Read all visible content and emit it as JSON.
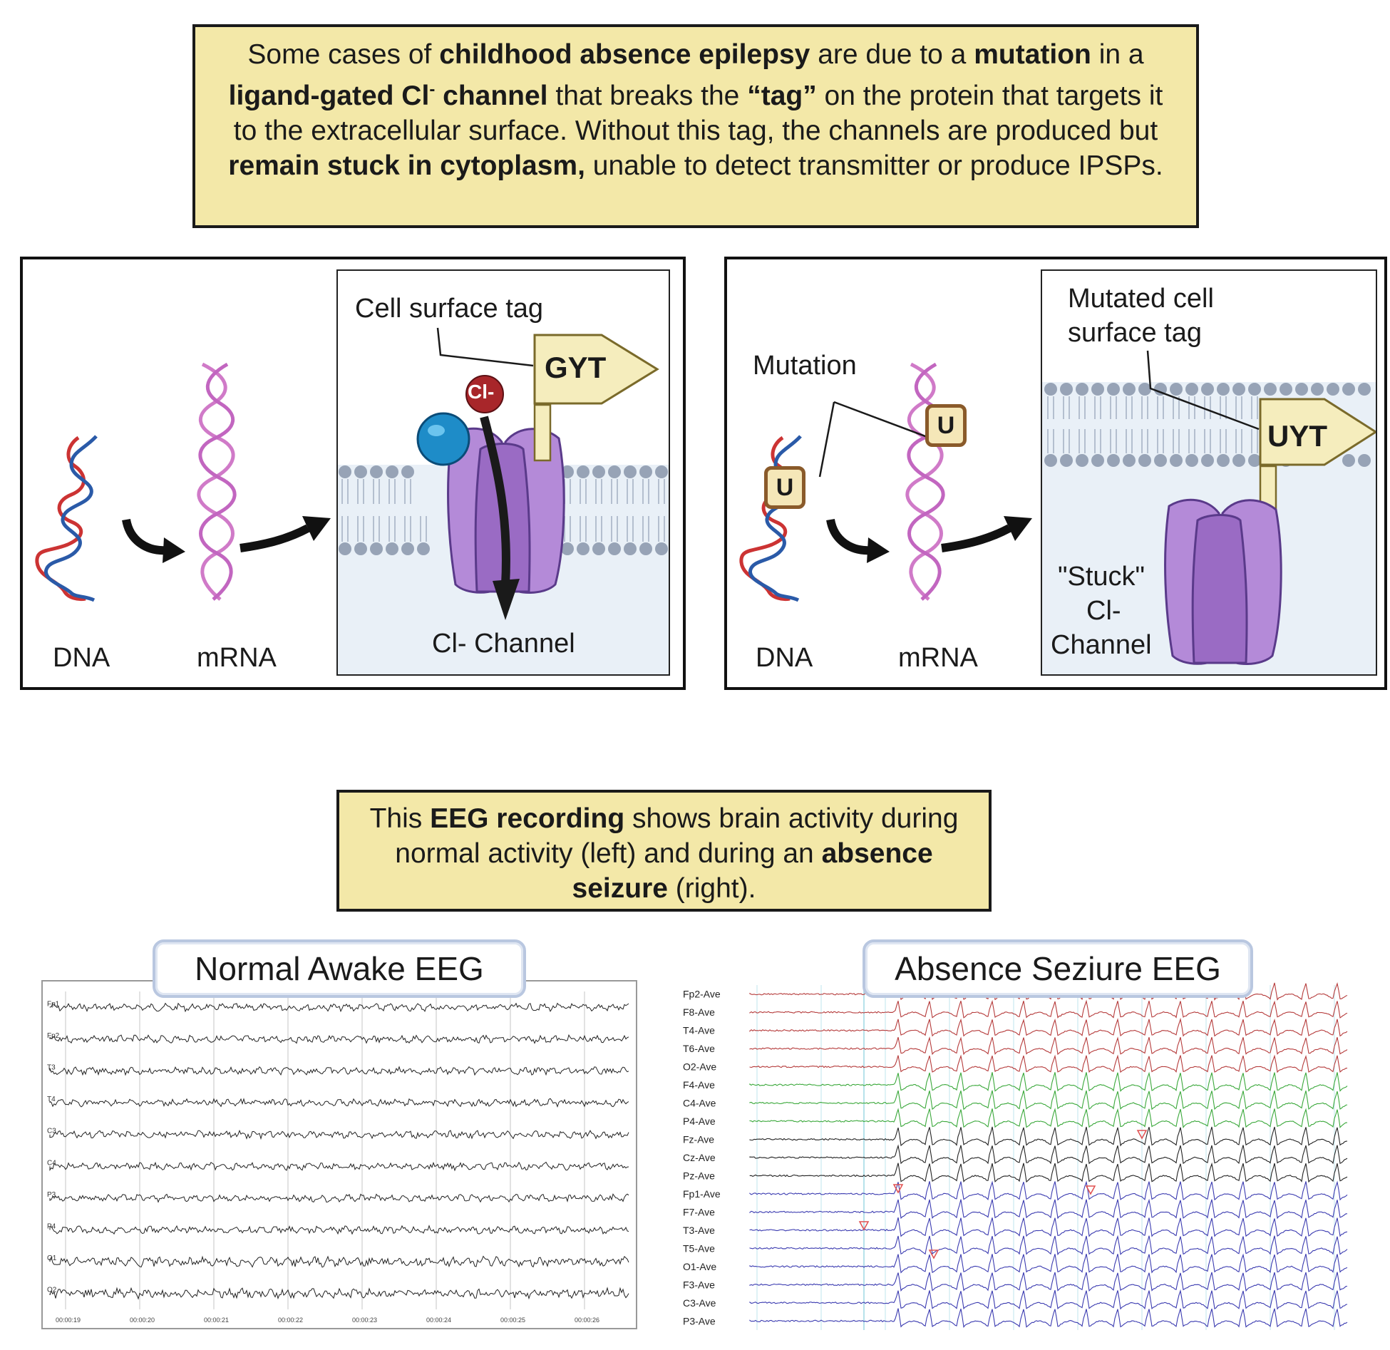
{
  "top_box": {
    "t1": "Some cases of ",
    "t2": "childhood absence epilepsy",
    "t3": " are due to a ",
    "t4": "mutation",
    "t5": " in a ",
    "t6": "ligand-gated Cl",
    "t6sup": "-",
    "t7": " channel",
    "t8": " that breaks the ",
    "t9": "“tag”",
    "t10": " on the protein that targets it to the extracellular surface.  Without this tag, the channels are produced but ",
    "t11": "remain stuck in cytoplasm,",
    "t12": " unable to detect transmitter or produce IPSPs."
  },
  "left_panel": {
    "dna": "DNA",
    "mrna": "mRNA",
    "tag_label": "Cell surface tag",
    "tag_code": "GYT",
    "ion": "Cl-",
    "channel": "Cl- Channel"
  },
  "right_panel": {
    "dna": "DNA",
    "mrna": "mRNA",
    "mutation": "Mutation",
    "u": "U",
    "tag_label_1": "Mutated cell",
    "tag_label_2": "surface tag",
    "tag_code": "UYT",
    "stuck_1": "\"Stuck\"",
    "stuck_2": "Cl-",
    "stuck_3": "Channel"
  },
  "eeg_box": {
    "t1": "This ",
    "t2": "EEG recording",
    "t3": " shows brain activity during normal activity (left) and during an ",
    "t4": "absence seizure",
    "t5": " (right)."
  },
  "normal_eeg": {
    "title": "Normal Awake EEG",
    "channels": [
      "Fp1",
      "Fp2",
      "T3",
      "T4",
      "C3",
      "C4",
      "P3",
      "P4",
      "O1",
      "O2"
    ],
    "times": [
      "00:00:19",
      "00:00:20",
      "00:00:21",
      "00:00:22",
      "00:00:23",
      "00:00:24",
      "00:00:25",
      "00:00:26"
    ]
  },
  "seizure_eeg": {
    "title": "Absence Seziure EEG",
    "channels": [
      "Fp2-Ave",
      "F8-Ave",
      "T4-Ave",
      "T6-Ave",
      "O2-Ave",
      "F4-Ave",
      "C4-Ave",
      "P4-Ave",
      "Fz-Ave",
      "Cz-Ave",
      "Pz-Ave",
      "Fp1-Ave",
      "F7-Ave",
      "T3-Ave",
      "T5-Ave",
      "O1-Ave",
      "F3-Ave",
      "C3-Ave",
      "P3-Ave"
    ],
    "colors": {
      "red": "#b53a3a",
      "green": "#3aa83a",
      "black": "#222222",
      "blue": "#3a3ab0"
    }
  }
}
